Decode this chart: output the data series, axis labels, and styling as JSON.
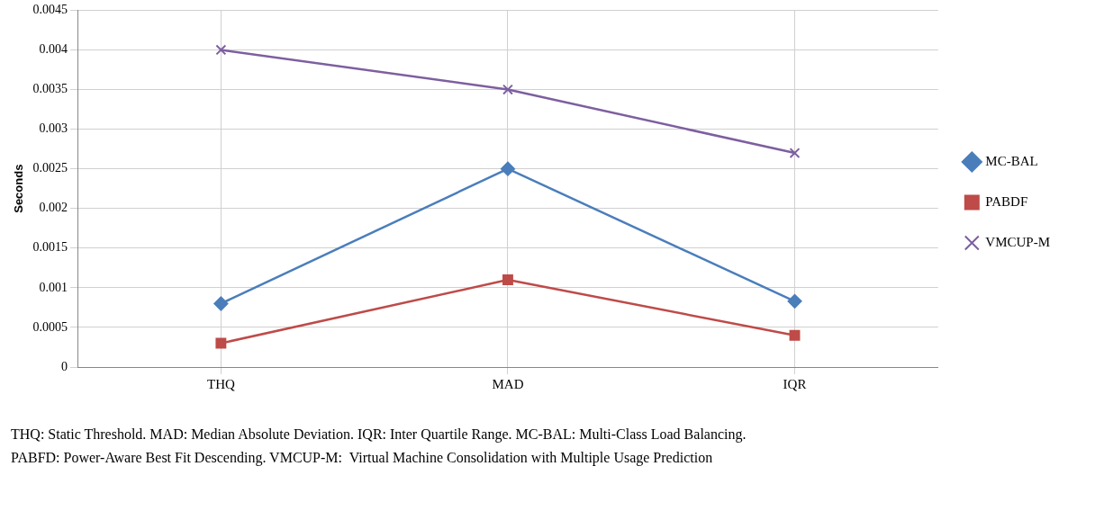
{
  "chart_data": {
    "type": "line",
    "ylabel": "Seconds",
    "categories": [
      "THQ",
      "MAD",
      "IQR"
    ],
    "series": [
      {
        "name": "MC-BAL",
        "color": "#4a7ebb",
        "values": [
          0.0008,
          0.0025,
          0.00083
        ],
        "marker": "diamond"
      },
      {
        "name": "PABDF",
        "color": "#be4b48",
        "values": [
          0.0003,
          0.0011,
          0.0004
        ],
        "marker": "square"
      },
      {
        "name": "VMCUP-M",
        "color": "#7d5fa0",
        "values": [
          0.004,
          0.0035,
          0.0027
        ],
        "marker": "cross"
      }
    ],
    "ylim": [
      0,
      0.0045
    ],
    "yticks": [
      0,
      0.0005,
      0.001,
      0.0015,
      0.002,
      0.0025,
      0.003,
      0.0035,
      0.004,
      0.0045
    ],
    "grid": true,
    "legend": "right",
    "line_style": "solid",
    "annotations": [
      "THQ: Static Threshold. MAD: Median Absolute Deviation. IQR: Inter Quartile Range. MC-BAL: Multi-Class Load Balancing.",
      "PABFD: Power-Aware Best Fit Descending. VMCUP-M:  Virtual Machine Consolidation with Multiple Usage Prediction"
    ]
  }
}
